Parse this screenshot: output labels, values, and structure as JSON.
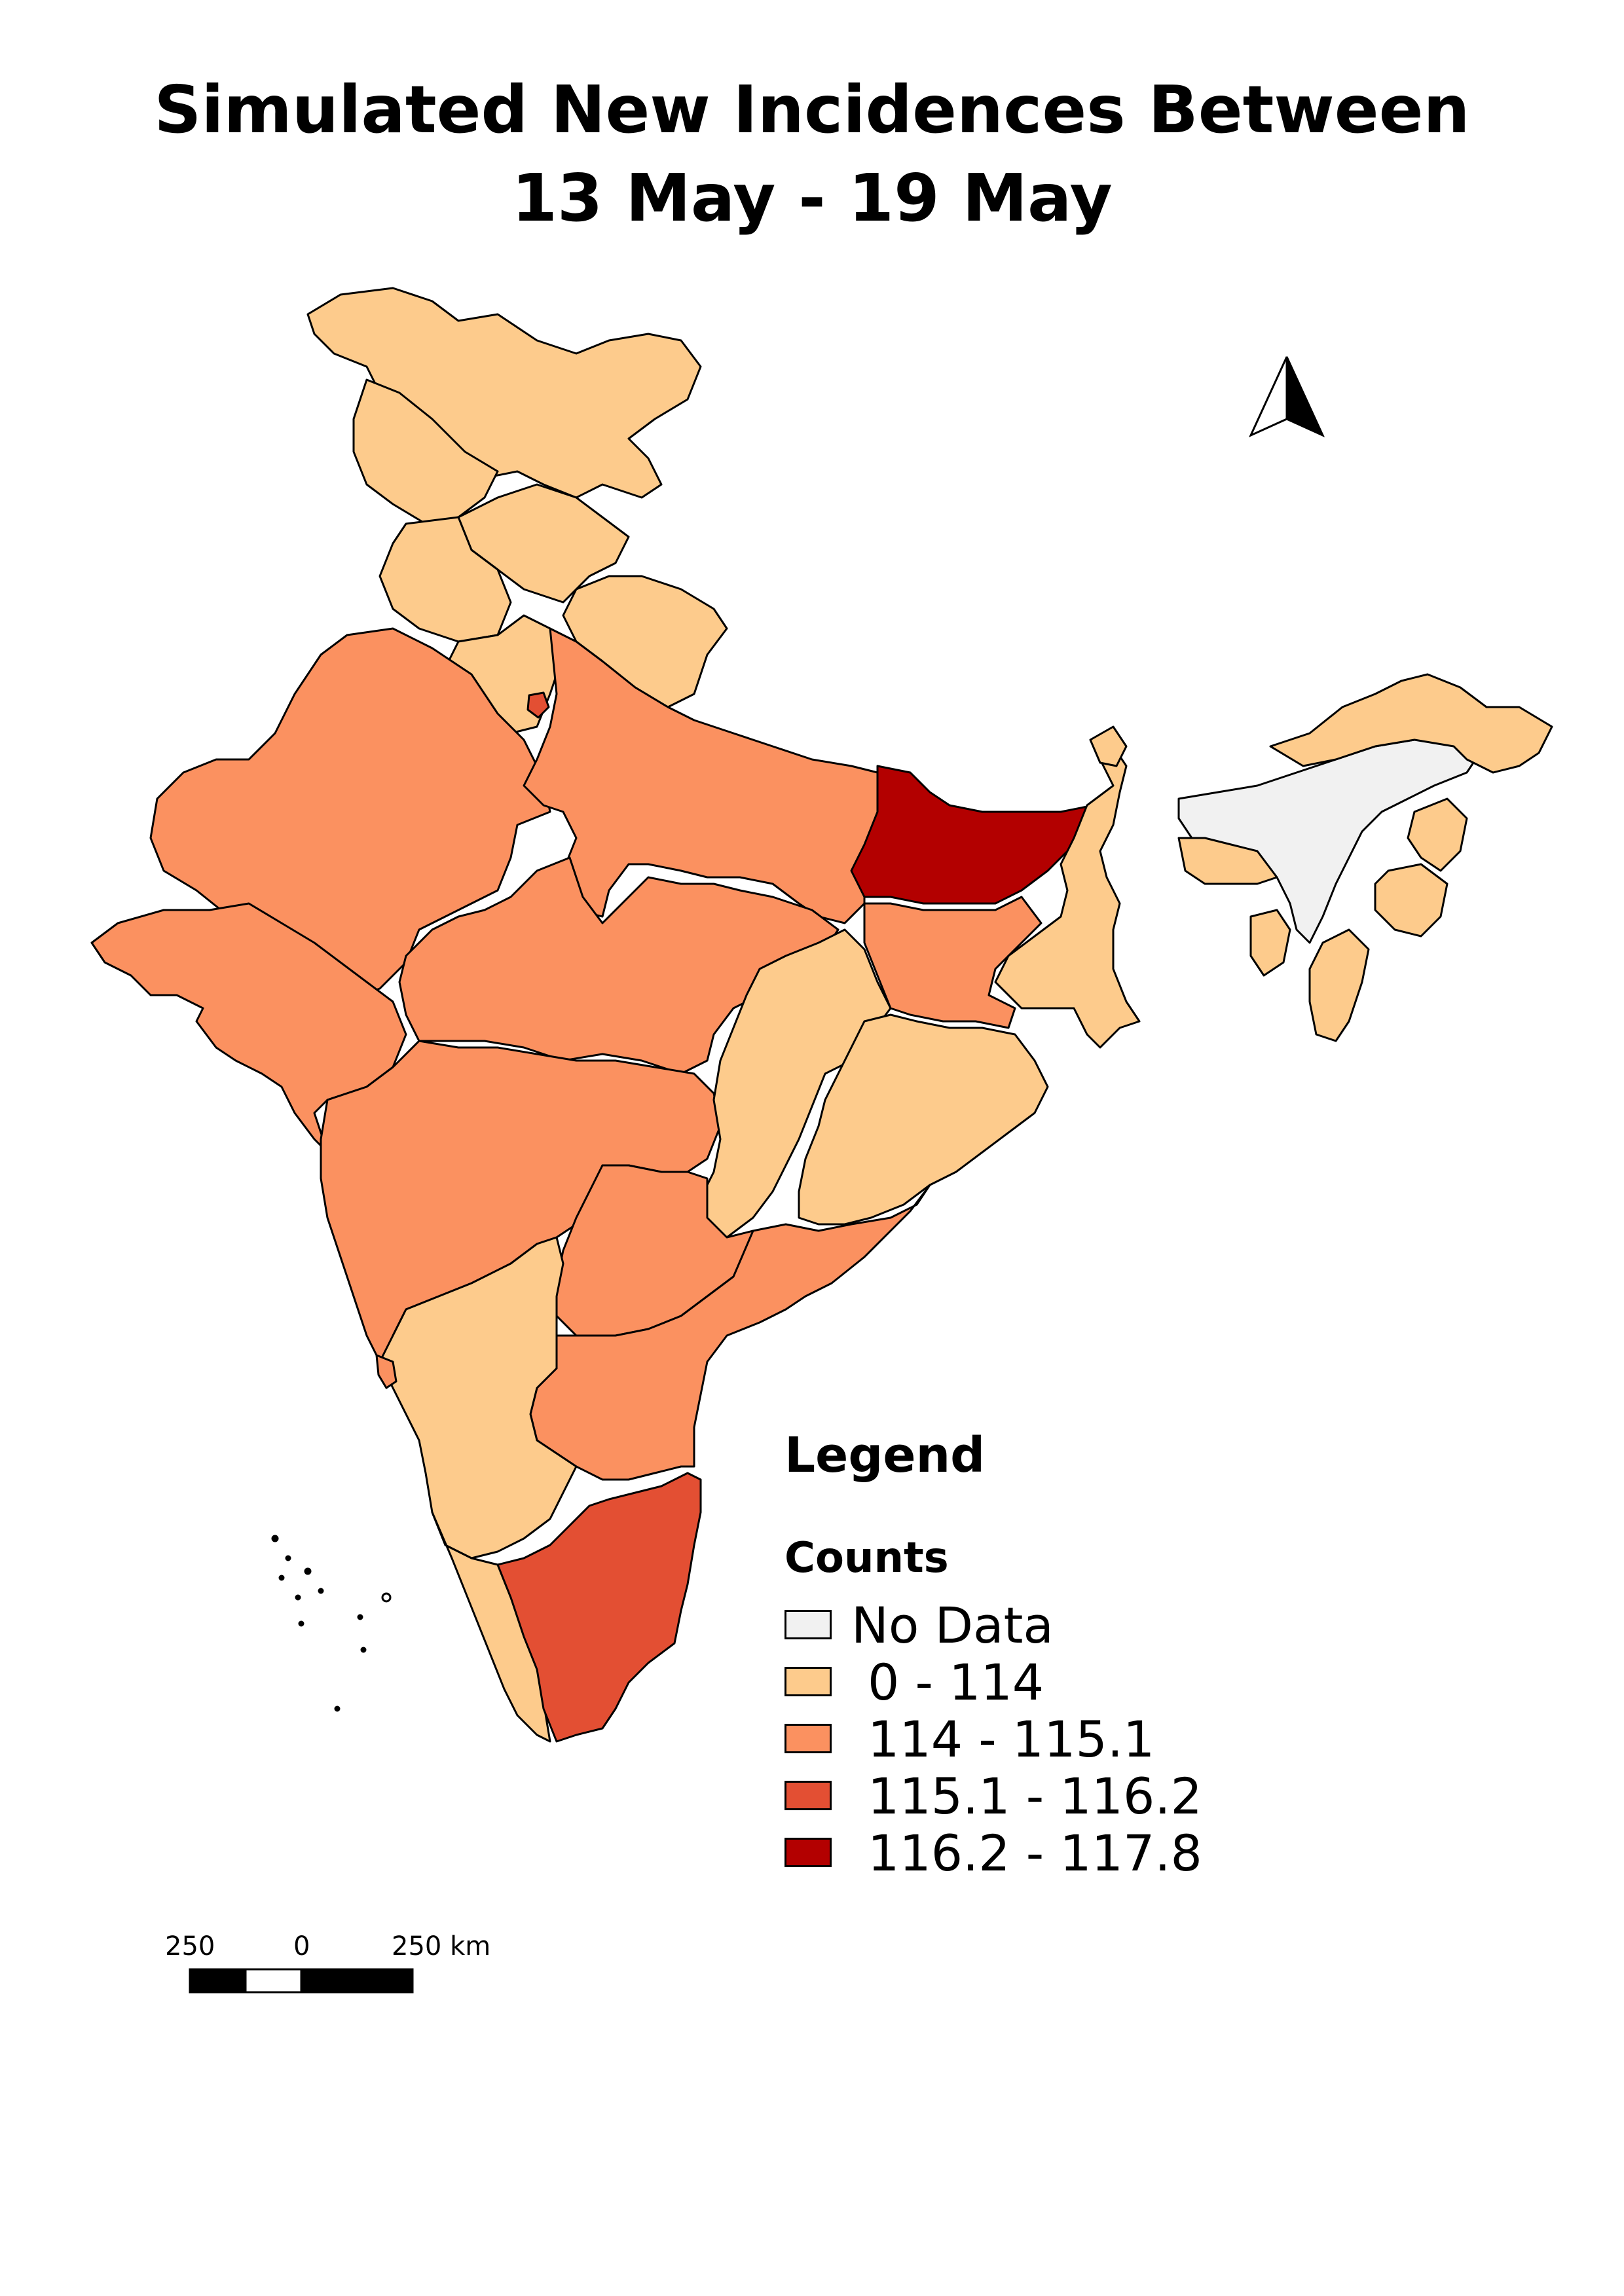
{
  "title": {
    "line1": "Simulated New Incidences Between",
    "line2": "13 May - 19 May"
  },
  "legend": {
    "title": "Legend",
    "subtitle": "Counts",
    "items": [
      {
        "label": "No Data",
        "color": "#f1f1f1"
      },
      {
        "label": "0 - 114",
        "color": "#fdcb8c"
      },
      {
        "label": "114 - 115.1",
        "color": "#fb9160"
      },
      {
        "label": "115.1 - 116.2",
        "color": "#e34f33"
      },
      {
        "label": "116.2 - 117.8",
        "color": "#b30000"
      }
    ]
  },
  "scale_bar": {
    "labels": [
      "250",
      "0",
      "250 km"
    ]
  },
  "north_arrow": {
    "icon": "north-arrow-icon"
  },
  "colors": {
    "no_data": "#f1f1f1",
    "class1": "#fdcb8c",
    "class2": "#fb9160",
    "class3": "#e34f33",
    "class4": "#b30000",
    "outline": "#000000"
  }
}
